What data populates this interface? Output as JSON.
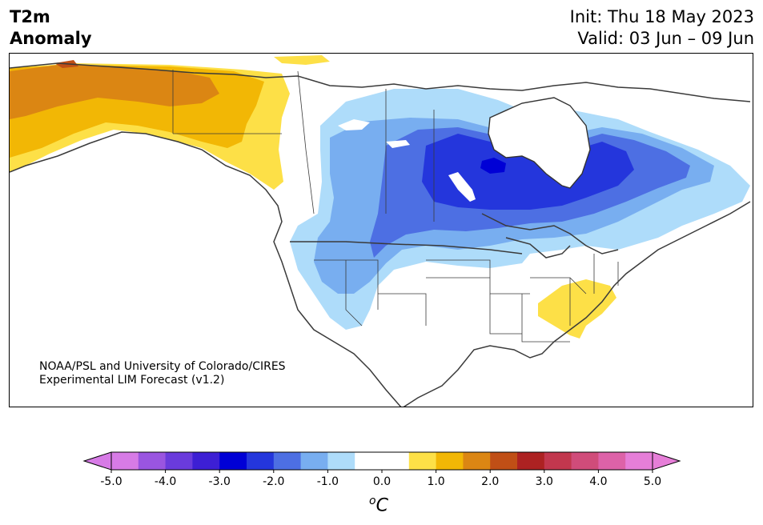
{
  "header": {
    "title_line1": "T2m",
    "title_line2": "Anomaly",
    "init": "Init: Thu 18 May 2023",
    "valid": "Valid: 03 Jun – 09 Jun"
  },
  "credit": {
    "line1": "NOAA/PSL and University of Colorado/CIRES",
    "line2": "Experimental LIM Forecast (v1.2)"
  },
  "colorbar": {
    "unit_base": "C",
    "unit_sup": "o",
    "tick_labels": [
      "-5.0",
      "-4.0",
      "-3.0",
      "-2.0",
      "-1.0",
      "0.0",
      "1.0",
      "2.0",
      "3.0",
      "4.0",
      "5.0"
    ],
    "colors": [
      "#d77be6",
      "#9a55e0",
      "#6a3bdc",
      "#3d1fd4",
      "#0000d6",
      "#2436dc",
      "#4d6fe3",
      "#78aef0",
      "#aedcfa",
      "#ffffff",
      "#ffffff",
      "#fde047",
      "#f2b705",
      "#db8613",
      "#c04f16",
      "#ad2222",
      "#c2374e",
      "#d04c7a",
      "#dd62a8",
      "#e67ed8"
    ],
    "under_color": "#d77be6",
    "over_color": "#e67ed8"
  }
}
